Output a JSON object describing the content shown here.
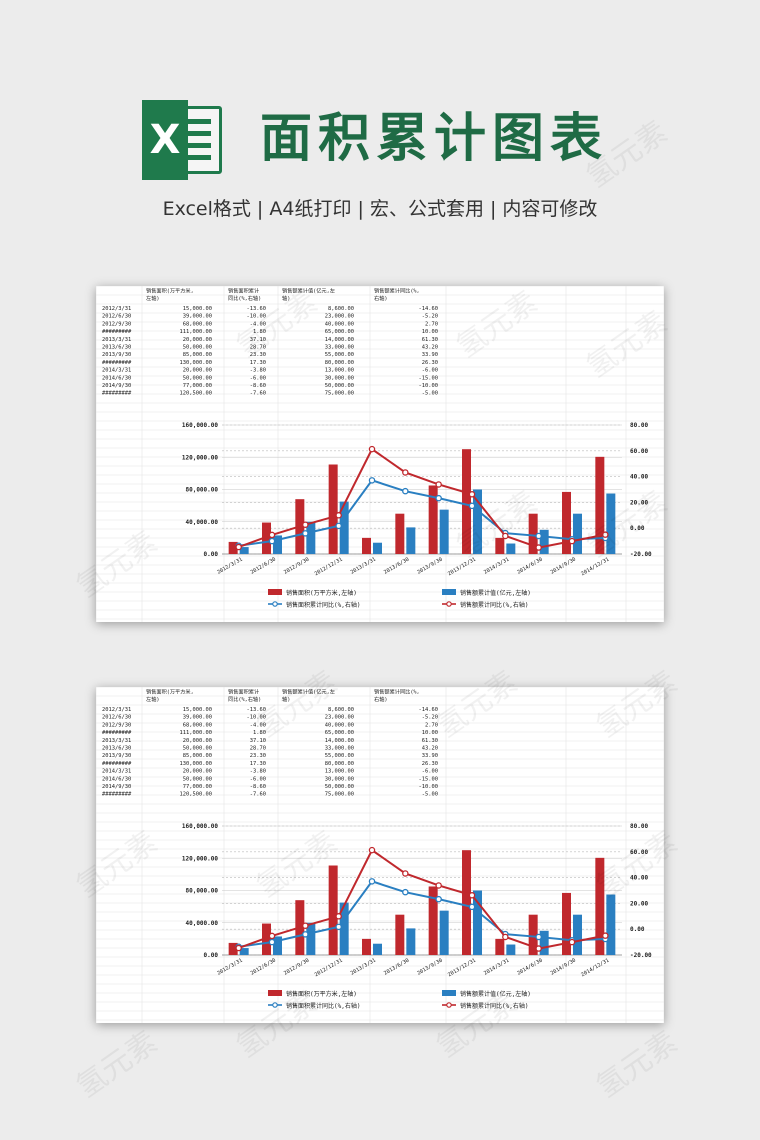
{
  "header": {
    "logo_letter": "X",
    "title": "面积累计图表",
    "subtitle": "Excel格式 |  A4纸打印 | 宏、公式套用 | 内容可修改"
  },
  "watermark": "氢元素",
  "table": {
    "headers": [
      "",
      "销售面积(万平方米,左轴)",
      "销售面积累计同比(%,右轴)",
      "销售额累计值(亿元,左轴)",
      "销售额累计同比(%,右轴)"
    ],
    "header_lines": [
      [
        "",
        "销售面积(万平方米,",
        "销售面积累计",
        "销售额累计值(亿元,左",
        "销售额累计同比(%,"
      ],
      [
        "",
        "左轴)",
        "同比(%,右轴)",
        "轴)",
        "右轴)"
      ]
    ],
    "rows": [
      [
        "2012/3/31",
        "15,000.00",
        "-13.60",
        "8,600.00",
        "-14.60"
      ],
      [
        "2012/6/30",
        "39,000.00",
        "-10.00",
        "23,000.00",
        "-5.20"
      ],
      [
        "2012/9/30",
        "68,000.00",
        "-4.00",
        "40,000.00",
        "2.70"
      ],
      [
        "#########",
        "111,000.00",
        "1.80",
        "65,000.00",
        "10.00"
      ],
      [
        "2013/3/31",
        "20,000.00",
        "37.10",
        "14,000.00",
        "61.30"
      ],
      [
        "2013/6/30",
        "50,000.00",
        "28.70",
        "33,000.00",
        "43.20"
      ],
      [
        "2013/9/30",
        "85,000.00",
        "23.30",
        "55,000.00",
        "33.90"
      ],
      [
        "#########",
        "130,000.00",
        "17.30",
        "80,000.00",
        "26.30"
      ],
      [
        "2014/3/31",
        "20,000.00",
        "-3.80",
        "13,000.00",
        "-6.00"
      ],
      [
        "2014/6/30",
        "50,000.00",
        "-6.00",
        "30,000.00",
        "-15.00"
      ],
      [
        "2014/9/30",
        "77,000.00",
        "-8.60",
        "50,000.00",
        "-10.00"
      ],
      [
        "#########",
        "120,500.00",
        "-7.60",
        "75,000.00",
        "-5.00"
      ]
    ]
  },
  "chart_data": {
    "type": "bar",
    "title": "",
    "categories": [
      "2012/3/31",
      "2012/6/30",
      "2012/9/30",
      "2012/12/31",
      "2013/3/31",
      "2013/6/30",
      "2013/9/30",
      "2013/12/31",
      "2014/3/31",
      "2014/6/30",
      "2014/9/30",
      "2014/12/31"
    ],
    "series": [
      {
        "name": "销售面积(万平方米,左轴)",
        "kind": "bar",
        "axis": "left",
        "color": "#c0282d",
        "values": [
          15000,
          39000,
          68000,
          111000,
          20000,
          50000,
          85000,
          130000,
          20000,
          50000,
          77000,
          120500
        ]
      },
      {
        "name": "销售额累计值(亿元,左轴)",
        "kind": "bar",
        "axis": "left",
        "color": "#2a7fc1",
        "values": [
          8600,
          23000,
          40000,
          65000,
          14000,
          33000,
          55000,
          80000,
          13000,
          30000,
          50000,
          75000
        ]
      },
      {
        "name": "销售面积累计同比(%,右轴)",
        "kind": "line",
        "axis": "right",
        "color": "#2a7fc1",
        "values": [
          -13.6,
          -10.0,
          -4.0,
          1.8,
          37.1,
          28.7,
          23.3,
          17.3,
          -3.8,
          -6.0,
          -8.6,
          -7.6
        ]
      },
      {
        "name": "销售额累计同比(%,右轴)",
        "kind": "line",
        "axis": "right",
        "color": "#c0282d",
        "values": [
          -14.6,
          -5.2,
          2.7,
          10.0,
          61.3,
          43.2,
          33.9,
          26.3,
          -6.0,
          -15.0,
          -10.0,
          -5.0
        ]
      }
    ],
    "y_left": {
      "min": 0,
      "max": 160000,
      "ticks": [
        "0.00",
        "40,000.00",
        "80,000.00",
        "120,000.00",
        "160,000.00"
      ]
    },
    "y_right": {
      "min": -20,
      "max": 80,
      "ticks": [
        "-20.00",
        "0.00",
        "20.00",
        "40.00",
        "60.00",
        "80.00"
      ]
    },
    "grid": true,
    "legend": "bottom"
  }
}
